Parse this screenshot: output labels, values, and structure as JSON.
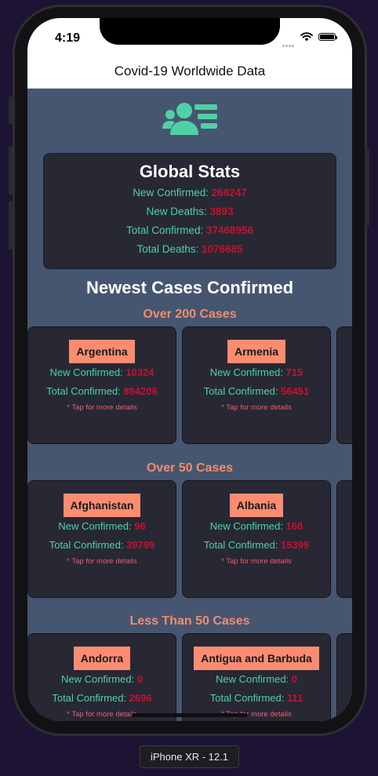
{
  "status_bar": {
    "time": "4:19"
  },
  "nav": {
    "title": "Covid-19 Worldwide Data"
  },
  "global": {
    "title": "Global Stats",
    "lines": [
      {
        "label": "New Confirmed: ",
        "value": "268247"
      },
      {
        "label": "New Deaths: ",
        "value": "3893"
      },
      {
        "label": "Total Confirmed: ",
        "value": "37468956"
      },
      {
        "label": "Total Deaths: ",
        "value": "1076685"
      }
    ]
  },
  "newest_title": "Newest Cases Confirmed",
  "groups": [
    {
      "title": "Over 200 Cases",
      "cards": [
        {
          "country": "Argentina",
          "new_label": "New Confirmed: ",
          "new_value": "10324",
          "total_label": "Total Confirmed: ",
          "total_value": "894206",
          "hint": "* Tap for more details"
        },
        {
          "country": "Armenia",
          "new_label": "New Confirmed: ",
          "new_value": "715",
          "total_label": "Total Confirmed: ",
          "total_value": "56451",
          "hint": "* Tap for more details"
        }
      ]
    },
    {
      "title": "Over 50 Cases",
      "cards": [
        {
          "country": "Afghanistan",
          "new_label": "New Confirmed: ",
          "new_value": "96",
          "total_label": "Total Confirmed: ",
          "total_value": "39799",
          "hint": "* Tap for more details"
        },
        {
          "country": "Albania",
          "new_label": "New Confirmed: ",
          "new_value": "168",
          "total_label": "Total Confirmed: ",
          "total_value": "15399",
          "hint": "* Tap for more details"
        }
      ]
    },
    {
      "title": "Less Than 50 Cases",
      "cards": [
        {
          "country": "Andorra",
          "new_label": "New Confirmed: ",
          "new_value": "0",
          "total_label": "Total Confirmed: ",
          "total_value": "2696",
          "hint": "* Tap for more details"
        },
        {
          "country": "Antigua and Barbuda",
          "new_label": "New Confirmed: ",
          "new_value": "0",
          "total_label": "Total Confirmed: ",
          "total_value": "111",
          "hint": "* Tap for more details"
        }
      ]
    }
  ],
  "device_label": "iPhone XR - 12.1",
  "colors": {
    "accent_green": "#4fd1a5",
    "value_red": "#c8102e",
    "salmon": "#fb8c72",
    "card_bg": "#272833",
    "screen_bg": "#465670"
  },
  "icons": {
    "header": "people-list-icon",
    "signal": "signal-icon",
    "wifi": "wifi-icon",
    "battery": "battery-icon"
  }
}
